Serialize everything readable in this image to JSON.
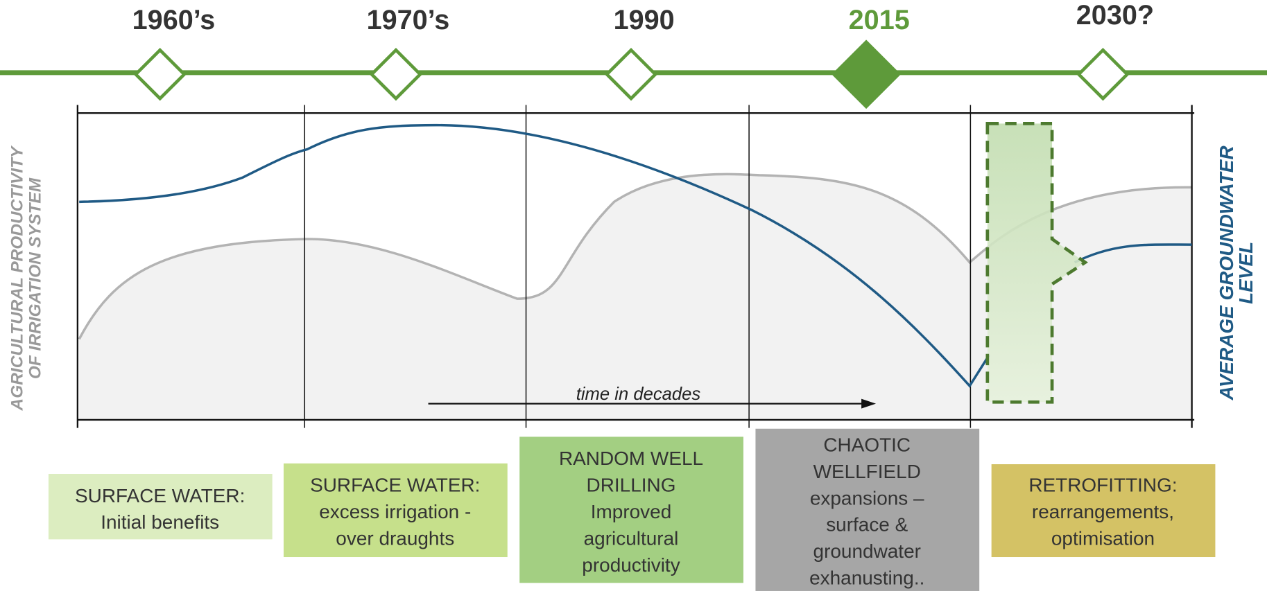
{
  "timeline": [
    {
      "label": "1960’s"
    },
    {
      "label": "1970’s"
    },
    {
      "label": "1990"
    },
    {
      "label": "2015"
    },
    {
      "label": "2030?"
    }
  ],
  "left_axis_label": [
    "AGRICULTURAL PRODUCTIVITY",
    "OF IRRIGATION SYSTEM"
  ],
  "right_axis_label": [
    "AVERAGE GROUNDWATER",
    "LEVEL"
  ],
  "x_label": "time in decades",
  "phases": [
    {
      "lines": [
        "SURFACE WATER:",
        "Initial benefits"
      ]
    },
    {
      "lines": [
        "SURFACE WATER:",
        "excess irrigation -",
        "over draughts"
      ]
    },
    {
      "lines": [
        "RANDOM WELL",
        "DRILLING",
        "Improved",
        "agricultural",
        "productivity"
      ]
    },
    {
      "lines": [
        "CHAOTIC",
        "WELLFIELD",
        "expansions –",
        "surface &",
        "groundwater",
        "exhanusting.."
      ]
    },
    {
      "lines": [
        "RETROFITTING:",
        "rearrangements,",
        "optimisation"
      ]
    }
  ]
}
